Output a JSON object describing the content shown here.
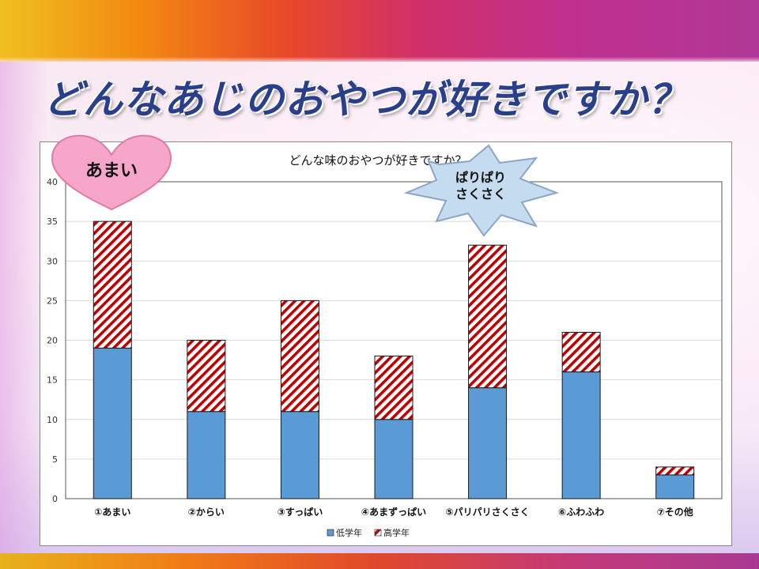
{
  "slide": {
    "title": "どんなあじのおやつが好きですか？"
  },
  "colors": {
    "low_grade": "#5b9bd5",
    "high_grade_stripe": "#c00000",
    "title_text": "#2a3f8c",
    "heart_fill": "#f6a6c8",
    "burst_fill": "#c5dbf0"
  },
  "callouts": {
    "heart": "あまい",
    "burst_line1": "ぱりぱり",
    "burst_line2": "さくさく"
  },
  "chart_data": {
    "type": "bar",
    "stacked": true,
    "title": "どんな味のおやつが好きですか？",
    "categories": [
      "①あまい",
      "②からい",
      "③すっぱい",
      "④あまずっぱい",
      "⑤パリパリさくさく",
      "⑥ふわふわ",
      "⑦その他"
    ],
    "series": [
      {
        "name": "低学年",
        "values": [
          19,
          11,
          11,
          10,
          14,
          16,
          3
        ],
        "pattern": "solid"
      },
      {
        "name": "高学年",
        "values": [
          16,
          9,
          14,
          8,
          18,
          5,
          1
        ],
        "pattern": "diagonal-stripe"
      }
    ],
    "ylim": [
      0,
      40
    ],
    "yticks": [
      0,
      5,
      10,
      15,
      20,
      25,
      30,
      35,
      40
    ],
    "grid": true,
    "legend": "bottom-center",
    "xlabel": "",
    "ylabel": ""
  }
}
